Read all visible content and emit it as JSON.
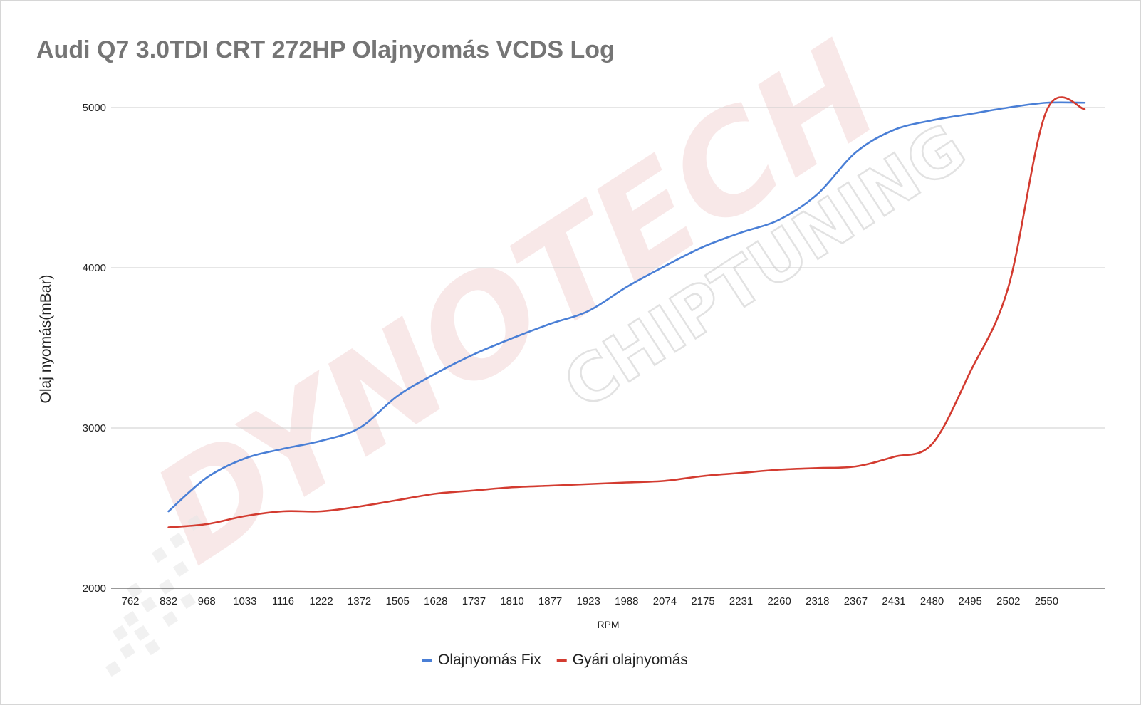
{
  "chart_data": {
    "type": "line",
    "title": "Audi Q7 3.0TDI CRT 272HP Olajnyomás VCDS Log",
    "xlabel": "RPM",
    "ylabel": "Olaj nyomás(mBar)",
    "ylim": [
      2000,
      5000
    ],
    "yticks": [
      2000,
      3000,
      4000,
      5000
    ],
    "grid": true,
    "legend_position": "bottom",
    "categories": [
      "762",
      "832",
      "968",
      "1033",
      "1116",
      "1222",
      "1372",
      "1505",
      "1628",
      "1737",
      "1810",
      "1877",
      "1923",
      "1988",
      "2074",
      "2175",
      "2231",
      "2260",
      "2318",
      "2367",
      "2431",
      "2480",
      "2495",
      "2502",
      "2550"
    ],
    "series": [
      {
        "name": "Olajnyomás Fix",
        "color": "#4a7fd6",
        "values": [
          2480,
          2690,
          2810,
          2870,
          2920,
          3000,
          3200,
          3340,
          3460,
          3560,
          3650,
          3730,
          3880,
          4010,
          4130,
          4220,
          4300,
          4460,
          4720,
          4860,
          4920,
          4960,
          5000,
          5030,
          5030
        ]
      },
      {
        "name": "Gyári olajnyomás",
        "color": "#d33b30",
        "values": [
          2380,
          2400,
          2450,
          2480,
          2480,
          2510,
          2550,
          2590,
          2610,
          2630,
          2640,
          2650,
          2660,
          2670,
          2700,
          2720,
          2740,
          2750,
          2760,
          2820,
          2900,
          3350,
          3880,
          4980,
          4990
        ]
      }
    ]
  },
  "watermark": {
    "brand": "DYNOTECH",
    "sub": "CHIPTUNING"
  }
}
